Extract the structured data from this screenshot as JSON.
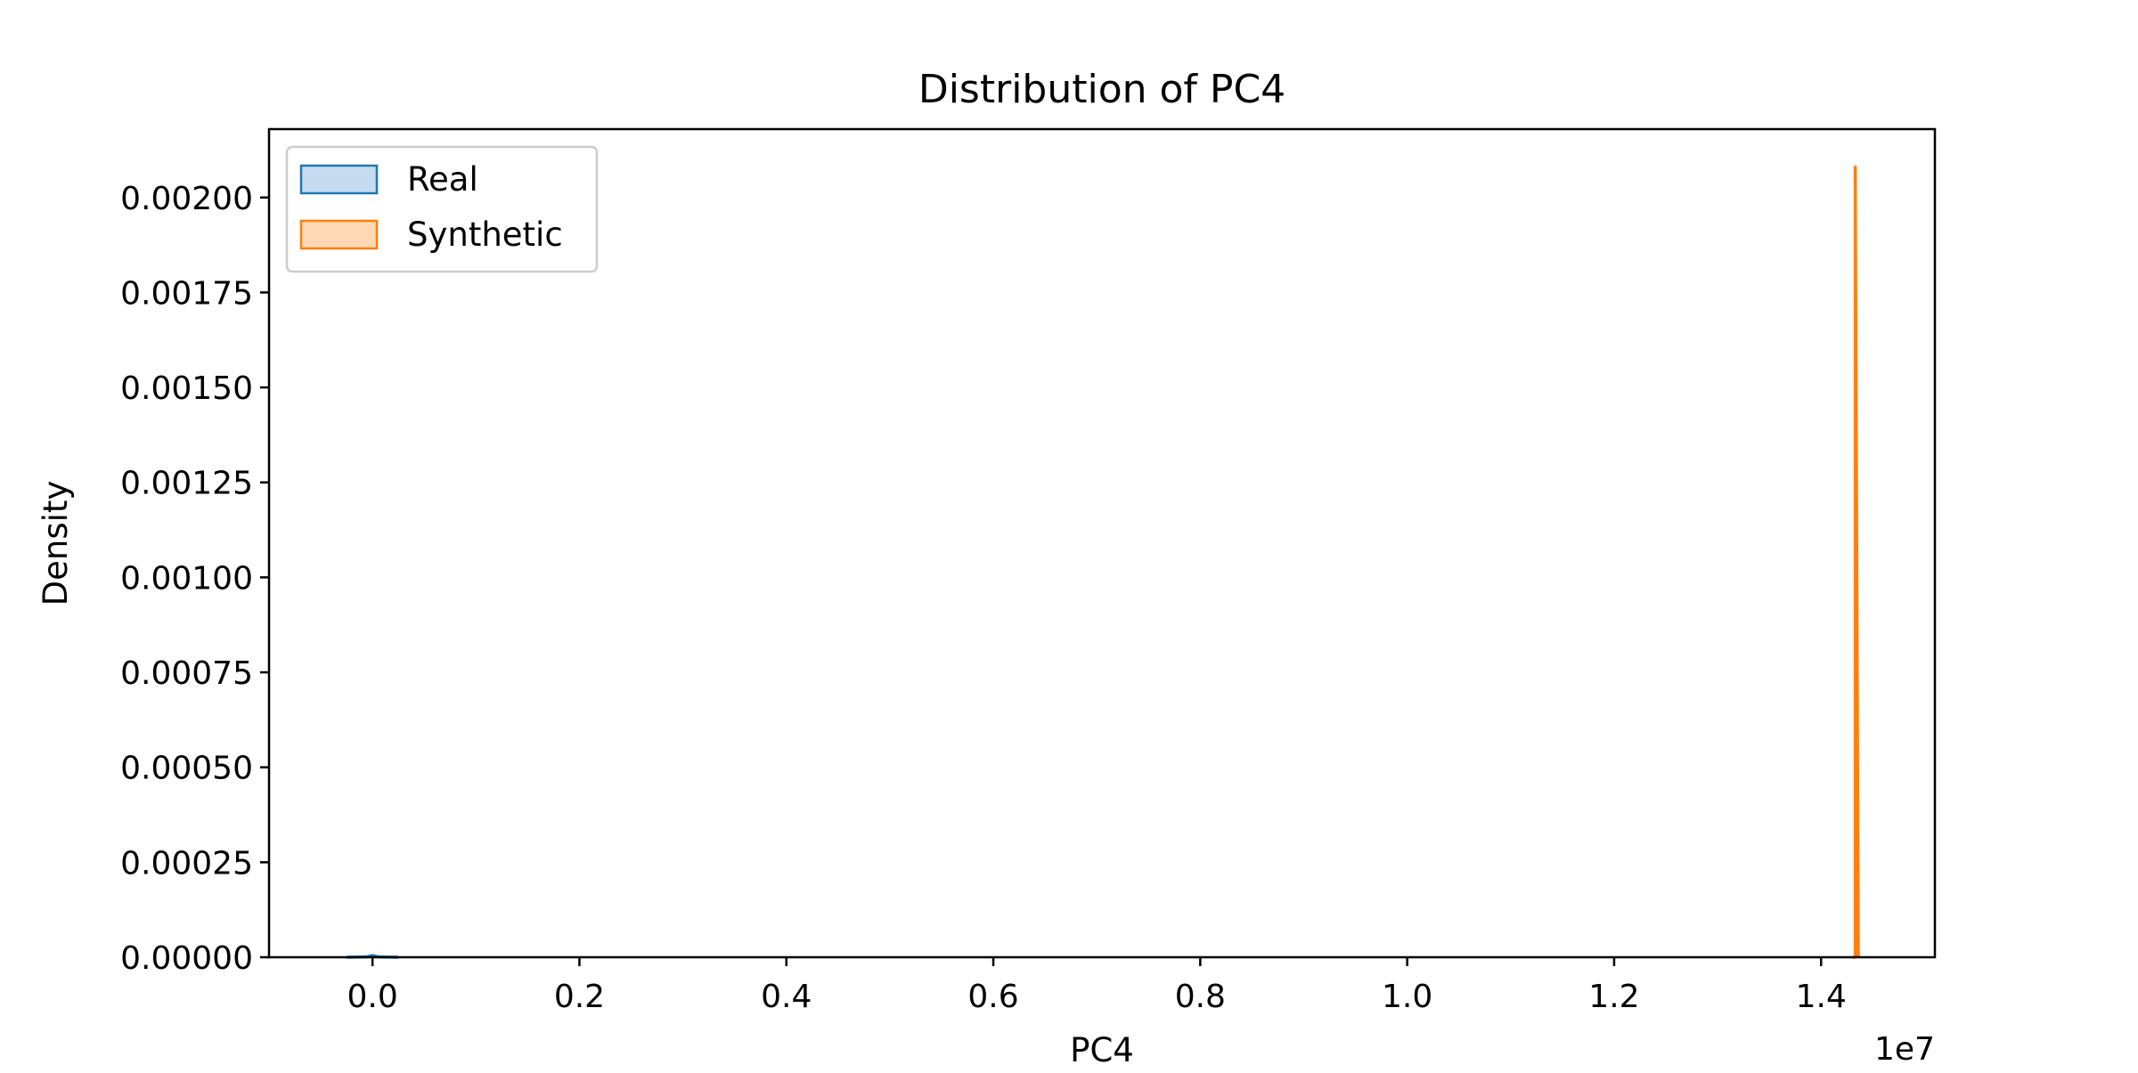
{
  "chart_data": {
    "type": "area",
    "title": "Distribution of PC4",
    "xlabel": "PC4",
    "ylabel": "Density",
    "x_offset_label": "1e7",
    "xlim": [
      -1000000,
      15100000
    ],
    "ylim": [
      0,
      0.00218
    ],
    "x_ticks": [
      0,
      2000000,
      4000000,
      6000000,
      8000000,
      10000000,
      12000000,
      14000000
    ],
    "x_tick_labels": [
      "0.0",
      "0.2",
      "0.4",
      "0.6",
      "0.8",
      "1.0",
      "1.2",
      "1.4"
    ],
    "y_ticks": [
      0,
      0.00025,
      0.0005,
      0.00075,
      0.001,
      0.00125,
      0.0015,
      0.00175,
      0.002
    ],
    "y_tick_labels": [
      "0.00000",
      "0.00025",
      "0.00050",
      "0.00075",
      "0.00100",
      "0.00125",
      "0.00150",
      "0.00175",
      "0.00200"
    ],
    "grid": false,
    "legend_position": "top-left",
    "series": [
      {
        "name": "Real",
        "color": "#1f77b4",
        "fill": "#c6dbef",
        "x": [
          -250000,
          -60000,
          0,
          60000,
          250000
        ],
        "y": [
          0,
          8e-07,
          4.5e-06,
          8e-07,
          0
        ]
      },
      {
        "name": "Synthetic",
        "color": "#ff7f0e",
        "fill": "#ffd9b5",
        "x": [
          14300000,
          14330000,
          14330000,
          14360000
        ],
        "y": [
          0,
          0,
          0.00208,
          0
        ]
      }
    ]
  }
}
